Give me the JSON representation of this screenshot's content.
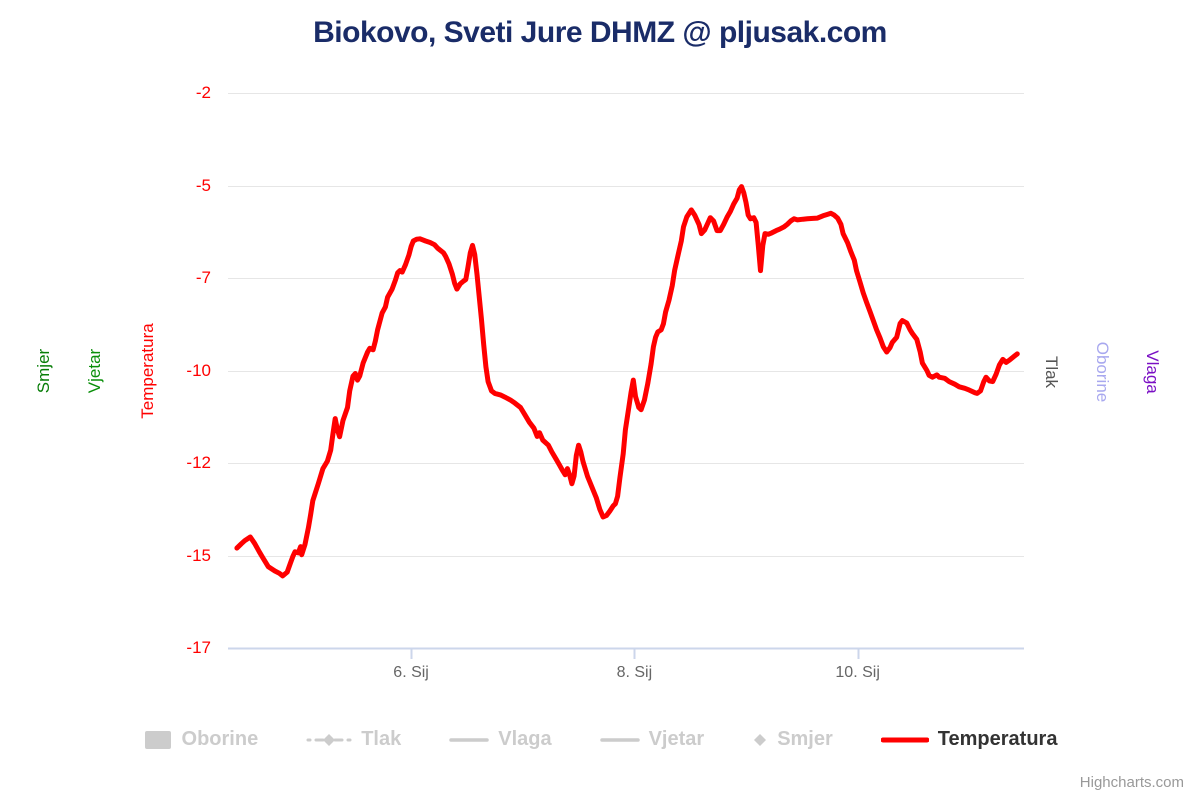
{
  "title": {
    "text": "Biokovo, Sveti Jure DHMZ @ pljusak.com",
    "color": "#1a2c68"
  },
  "credits": {
    "text": "Highcharts.com"
  },
  "axes": {
    "left_titles": [
      {
        "id": "smjer",
        "text": "Smjer",
        "color": "#077d07"
      },
      {
        "id": "vjetar",
        "text": "Vjetar",
        "color": "#0a8f0a"
      },
      {
        "id": "temperatura",
        "text": "Temperatura",
        "color": "#ff0000"
      }
    ],
    "right_titles": [
      {
        "id": "tlak",
        "text": "Tlak",
        "color": "#555555"
      },
      {
        "id": "oborine",
        "text": "Oborine",
        "color": "#a8a8ef"
      },
      {
        "id": "vlaga",
        "text": "Vlaga",
        "color": "#7a0fc4"
      }
    ]
  },
  "legend": {
    "items": [
      {
        "label": "Oborine",
        "symbol": "rect",
        "color": "#cccccc",
        "label_color": "#cccccc",
        "active": false
      },
      {
        "label": "Tlak",
        "symbol": "dashdot-diamond",
        "color": "#cccccc",
        "label_color": "#cccccc",
        "active": false
      },
      {
        "label": "Vlaga",
        "symbol": "line",
        "color": "#cccccc",
        "label_color": "#cccccc",
        "active": false
      },
      {
        "label": "Vjetar",
        "symbol": "line",
        "color": "#cccccc",
        "label_color": "#cccccc",
        "active": false
      },
      {
        "label": "Smjer",
        "symbol": "diamond",
        "color": "#cccccc",
        "label_color": "#cccccc",
        "active": false
      },
      {
        "label": "Temperatura",
        "symbol": "line-bold",
        "color": "#ff0000",
        "label_color": "#333333",
        "active": true
      }
    ]
  },
  "chart_data": {
    "type": "line",
    "title": "Biokovo, Sveti Jure DHMZ @ pljusak.com",
    "xlabel": "",
    "ylabel": "Temperatura",
    "grid": true,
    "legend_position": "bottom",
    "x_unit": "day of Sijecanj (January)",
    "x_range": [
      4.36,
      11.49
    ],
    "x_ticks": [
      {
        "value": 6,
        "label": "6. Sij"
      },
      {
        "value": 8,
        "label": "8. Sij"
      },
      {
        "value": 10,
        "label": "10. Sij"
      }
    ],
    "y_range": [
      -17.5,
      -2.5
    ],
    "y_ticks": [
      {
        "value": -2.5,
        "label": "-2"
      },
      {
        "value": -5,
        "label": "-5"
      },
      {
        "value": -7.5,
        "label": "-7"
      },
      {
        "value": -10,
        "label": "-10"
      },
      {
        "value": -12.5,
        "label": "-12"
      },
      {
        "value": -15,
        "label": "-15"
      },
      {
        "value": -17.5,
        "label": "-17"
      }
    ],
    "series": [
      {
        "name": "Oborine",
        "visible": false
      },
      {
        "name": "Tlak",
        "visible": false
      },
      {
        "name": "Vlaga",
        "visible": false
      },
      {
        "name": "Vjetar",
        "visible": false
      },
      {
        "name": "Smjer",
        "visible": false
      },
      {
        "name": "Temperatura",
        "visible": true,
        "color": "#ff0000",
        "points": [
          [
            4.44,
            -14.8
          ],
          [
            4.48,
            -14.68
          ],
          [
            4.51,
            -14.6
          ],
          [
            4.56,
            -14.5
          ],
          [
            4.6,
            -14.68
          ],
          [
            4.64,
            -14.9
          ],
          [
            4.67,
            -15.05
          ],
          [
            4.72,
            -15.3
          ],
          [
            4.78,
            -15.42
          ],
          [
            4.82,
            -15.48
          ],
          [
            4.85,
            -15.55
          ],
          [
            4.89,
            -15.45
          ],
          [
            4.92,
            -15.2
          ],
          [
            4.94,
            -15.03
          ],
          [
            4.96,
            -14.9
          ],
          [
            4.99,
            -14.93
          ],
          [
            5.01,
            -14.76
          ],
          [
            5.02,
            -14.98
          ],
          [
            5.05,
            -14.7
          ],
          [
            5.08,
            -14.25
          ],
          [
            5.1,
            -13.9
          ],
          [
            5.12,
            -13.52
          ],
          [
            5.17,
            -13.05
          ],
          [
            5.21,
            -12.65
          ],
          [
            5.25,
            -12.45
          ],
          [
            5.28,
            -12.15
          ],
          [
            5.3,
            -11.72
          ],
          [
            5.32,
            -11.3
          ],
          [
            5.34,
            -11.6
          ],
          [
            5.36,
            -11.79
          ],
          [
            5.39,
            -11.35
          ],
          [
            5.43,
            -11.0
          ],
          [
            5.45,
            -10.55
          ],
          [
            5.48,
            -10.15
          ],
          [
            5.5,
            -10.08
          ],
          [
            5.52,
            -10.26
          ],
          [
            5.54,
            -10.15
          ],
          [
            5.57,
            -9.8
          ],
          [
            5.61,
            -9.5
          ],
          [
            5.63,
            -9.4
          ],
          [
            5.66,
            -9.44
          ],
          [
            5.68,
            -9.2
          ],
          [
            5.7,
            -8.9
          ],
          [
            5.74,
            -8.45
          ],
          [
            5.77,
            -8.28
          ],
          [
            5.79,
            -8.02
          ],
          [
            5.83,
            -7.8
          ],
          [
            5.86,
            -7.55
          ],
          [
            5.88,
            -7.36
          ],
          [
            5.9,
            -7.3
          ],
          [
            5.92,
            -7.34
          ],
          [
            5.95,
            -7.14
          ],
          [
            5.98,
            -6.88
          ],
          [
            6.0,
            -6.65
          ],
          [
            6.02,
            -6.5
          ],
          [
            6.05,
            -6.45
          ],
          [
            6.08,
            -6.44
          ],
          [
            6.13,
            -6.5
          ],
          [
            6.17,
            -6.54
          ],
          [
            6.21,
            -6.6
          ],
          [
            6.24,
            -6.7
          ],
          [
            6.29,
            -6.82
          ],
          [
            6.31,
            -6.92
          ],
          [
            6.34,
            -7.12
          ],
          [
            6.37,
            -7.4
          ],
          [
            6.39,
            -7.64
          ],
          [
            6.41,
            -7.8
          ],
          [
            6.44,
            -7.66
          ],
          [
            6.47,
            -7.58
          ],
          [
            6.49,
            -7.54
          ],
          [
            6.51,
            -7.2
          ],
          [
            6.53,
            -6.82
          ],
          [
            6.55,
            -6.62
          ],
          [
            6.57,
            -6.86
          ],
          [
            6.59,
            -7.4
          ],
          [
            6.61,
            -8.0
          ],
          [
            6.63,
            -8.6
          ],
          [
            6.65,
            -9.3
          ],
          [
            6.67,
            -9.9
          ],
          [
            6.69,
            -10.3
          ],
          [
            6.72,
            -10.55
          ],
          [
            6.75,
            -10.62
          ],
          [
            6.8,
            -10.66
          ],
          [
            6.84,
            -10.72
          ],
          [
            6.89,
            -10.8
          ],
          [
            6.93,
            -10.88
          ],
          [
            6.98,
            -11.0
          ],
          [
            7.02,
            -11.2
          ],
          [
            7.06,
            -11.4
          ],
          [
            7.1,
            -11.56
          ],
          [
            7.13,
            -11.78
          ],
          [
            7.15,
            -11.68
          ],
          [
            7.18,
            -11.88
          ],
          [
            7.23,
            -12.02
          ],
          [
            7.26,
            -12.2
          ],
          [
            7.3,
            -12.4
          ],
          [
            7.33,
            -12.56
          ],
          [
            7.36,
            -12.72
          ],
          [
            7.38,
            -12.82
          ],
          [
            7.4,
            -12.65
          ],
          [
            7.42,
            -12.82
          ],
          [
            7.44,
            -13.06
          ],
          [
            7.46,
            -12.85
          ],
          [
            7.48,
            -12.3
          ],
          [
            7.5,
            -12.02
          ],
          [
            7.52,
            -12.2
          ],
          [
            7.54,
            -12.46
          ],
          [
            7.58,
            -12.86
          ],
          [
            7.62,
            -13.15
          ],
          [
            7.66,
            -13.45
          ],
          [
            7.69,
            -13.75
          ],
          [
            7.72,
            -13.96
          ],
          [
            7.75,
            -13.92
          ],
          [
            7.78,
            -13.8
          ],
          [
            7.81,
            -13.66
          ],
          [
            7.83,
            -13.6
          ],
          [
            7.85,
            -13.4
          ],
          [
            7.87,
            -12.9
          ],
          [
            7.9,
            -12.25
          ],
          [
            7.92,
            -11.6
          ],
          [
            7.95,
            -11.0
          ],
          [
            7.97,
            -10.6
          ],
          [
            7.99,
            -10.26
          ],
          [
            8.01,
            -10.7
          ],
          [
            8.04,
            -11.0
          ],
          [
            8.06,
            -11.06
          ],
          [
            8.09,
            -10.8
          ],
          [
            8.12,
            -10.35
          ],
          [
            8.15,
            -9.82
          ],
          [
            8.17,
            -9.36
          ],
          [
            8.19,
            -9.1
          ],
          [
            8.21,
            -8.96
          ],
          [
            8.24,
            -8.9
          ],
          [
            8.26,
            -8.74
          ],
          [
            8.28,
            -8.42
          ],
          [
            8.31,
            -8.1
          ],
          [
            8.34,
            -7.7
          ],
          [
            8.36,
            -7.3
          ],
          [
            8.39,
            -6.9
          ],
          [
            8.42,
            -6.5
          ],
          [
            8.44,
            -6.12
          ],
          [
            8.47,
            -5.85
          ],
          [
            8.51,
            -5.66
          ],
          [
            8.54,
            -5.8
          ],
          [
            8.58,
            -6.06
          ],
          [
            8.6,
            -6.3
          ],
          [
            8.63,
            -6.2
          ],
          [
            8.66,
            -6.0
          ],
          [
            8.68,
            -5.87
          ],
          [
            8.71,
            -5.96
          ],
          [
            8.74,
            -6.22
          ],
          [
            8.77,
            -6.22
          ],
          [
            8.8,
            -6.05
          ],
          [
            8.83,
            -5.86
          ],
          [
            8.86,
            -5.7
          ],
          [
            8.89,
            -5.5
          ],
          [
            8.92,
            -5.34
          ],
          [
            8.94,
            -5.12
          ],
          [
            8.96,
            -5.03
          ],
          [
            8.98,
            -5.2
          ],
          [
            9.0,
            -5.46
          ],
          [
            9.02,
            -5.8
          ],
          [
            9.04,
            -5.9
          ],
          [
            9.07,
            -5.87
          ],
          [
            9.09,
            -6.0
          ],
          [
            9.11,
            -6.62
          ],
          [
            9.13,
            -7.3
          ],
          [
            9.15,
            -6.62
          ],
          [
            9.17,
            -6.3
          ],
          [
            9.2,
            -6.32
          ],
          [
            9.23,
            -6.28
          ],
          [
            9.27,
            -6.22
          ],
          [
            9.3,
            -6.18
          ],
          [
            9.34,
            -6.12
          ],
          [
            9.37,
            -6.05
          ],
          [
            9.4,
            -5.96
          ],
          [
            9.43,
            -5.9
          ],
          [
            9.46,
            -5.93
          ],
          [
            9.51,
            -5.91
          ],
          [
            9.55,
            -5.9
          ],
          [
            9.6,
            -5.89
          ],
          [
            9.64,
            -5.88
          ],
          [
            9.69,
            -5.82
          ],
          [
            9.73,
            -5.78
          ],
          [
            9.76,
            -5.75
          ],
          [
            9.79,
            -5.8
          ],
          [
            9.82,
            -5.88
          ],
          [
            9.85,
            -6.05
          ],
          [
            9.87,
            -6.3
          ],
          [
            9.91,
            -6.55
          ],
          [
            9.94,
            -6.8
          ],
          [
            9.97,
            -7.02
          ],
          [
            9.99,
            -7.3
          ],
          [
            10.02,
            -7.6
          ],
          [
            10.05,
            -7.9
          ],
          [
            10.08,
            -8.16
          ],
          [
            10.11,
            -8.4
          ],
          [
            10.14,
            -8.65
          ],
          [
            10.17,
            -8.9
          ],
          [
            10.2,
            -9.12
          ],
          [
            10.23,
            -9.36
          ],
          [
            10.26,
            -9.5
          ],
          [
            10.29,
            -9.38
          ],
          [
            10.31,
            -9.24
          ],
          [
            10.35,
            -9.1
          ],
          [
            10.38,
            -8.73
          ],
          [
            10.4,
            -8.65
          ],
          [
            10.44,
            -8.72
          ],
          [
            10.47,
            -8.9
          ],
          [
            10.49,
            -9.0
          ],
          [
            10.53,
            -9.16
          ],
          [
            10.56,
            -9.5
          ],
          [
            10.58,
            -9.8
          ],
          [
            10.62,
            -10.0
          ],
          [
            10.64,
            -10.13
          ],
          [
            10.67,
            -10.18
          ],
          [
            10.71,
            -10.12
          ],
          [
            10.73,
            -10.18
          ],
          [
            10.78,
            -10.21
          ],
          [
            10.82,
            -10.3
          ],
          [
            10.87,
            -10.37
          ],
          [
            10.91,
            -10.44
          ],
          [
            10.96,
            -10.48
          ],
          [
            11.0,
            -10.53
          ],
          [
            11.05,
            -10.6
          ],
          [
            11.07,
            -10.62
          ],
          [
            11.1,
            -10.55
          ],
          [
            11.13,
            -10.3
          ],
          [
            11.15,
            -10.18
          ],
          [
            11.18,
            -10.28
          ],
          [
            11.21,
            -10.3
          ],
          [
            11.24,
            -10.1
          ],
          [
            11.27,
            -9.85
          ],
          [
            11.3,
            -9.7
          ],
          [
            11.33,
            -9.78
          ],
          [
            11.36,
            -9.72
          ],
          [
            11.4,
            -9.62
          ],
          [
            11.43,
            -9.55
          ]
        ]
      }
    ]
  },
  "style": {
    "grid_color": "#e6e6e6",
    "axis_line_color": "#ccd6eb",
    "x_label_color": "#666666",
    "y_label_color": "#ff0000"
  }
}
